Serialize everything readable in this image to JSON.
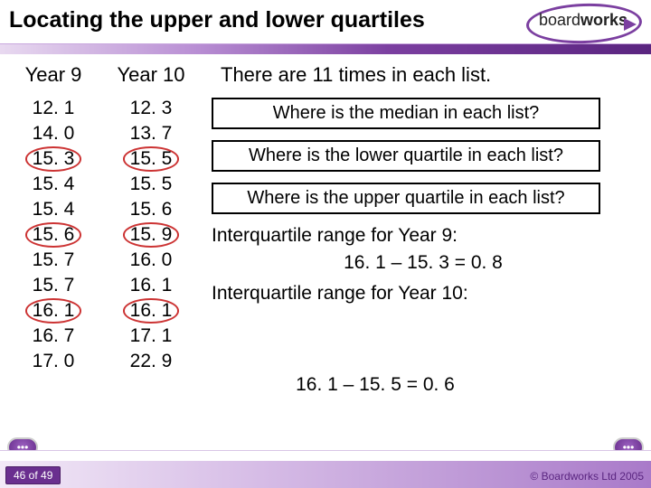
{
  "title": "Locating the upper and lower quartiles",
  "logo": {
    "text_plain": "board",
    "text_bold": "works"
  },
  "columns": {
    "year9": {
      "label": "Year 9",
      "values": [
        "12. 1",
        "14. 0",
        "15. 3",
        "15. 4",
        "15. 4",
        "15. 6",
        "15. 7",
        "15. 7",
        "16. 1",
        "16. 7",
        "17. 0"
      ],
      "ringed_indices": [
        2,
        5,
        8
      ]
    },
    "year10": {
      "label": "Year 10",
      "values": [
        "12. 3",
        "13. 7",
        "15. 5",
        "15. 5",
        "15. 6",
        "15. 9",
        "16. 0",
        "16. 1",
        "16. 1",
        "17. 1",
        "22. 9"
      ],
      "ringed_indices": [
        2,
        5,
        8
      ]
    }
  },
  "intro": "There are 11 times in each list.",
  "questions": [
    "Where is the median in each list?",
    "Where is the lower quartile in each list?",
    "Where is the upper quartile in each list?"
  ],
  "iqr": {
    "y9_label": "Interquartile range for Year 9:",
    "y9_eqn": "16. 1 – 15. 3 = 0. 8",
    "y10_label": "Interquartile range for Year 10:",
    "y10_eqn": "16. 1 – 15. 5 = 0. 6"
  },
  "footer": {
    "slide": "46 of 49",
    "copyright": "© Boardworks Ltd 2005",
    "nav_glyph": "•••"
  },
  "colors": {
    "purple_dark": "#5a2580",
    "purple_mid": "#7b3fa0",
    "ring": "#c33"
  }
}
